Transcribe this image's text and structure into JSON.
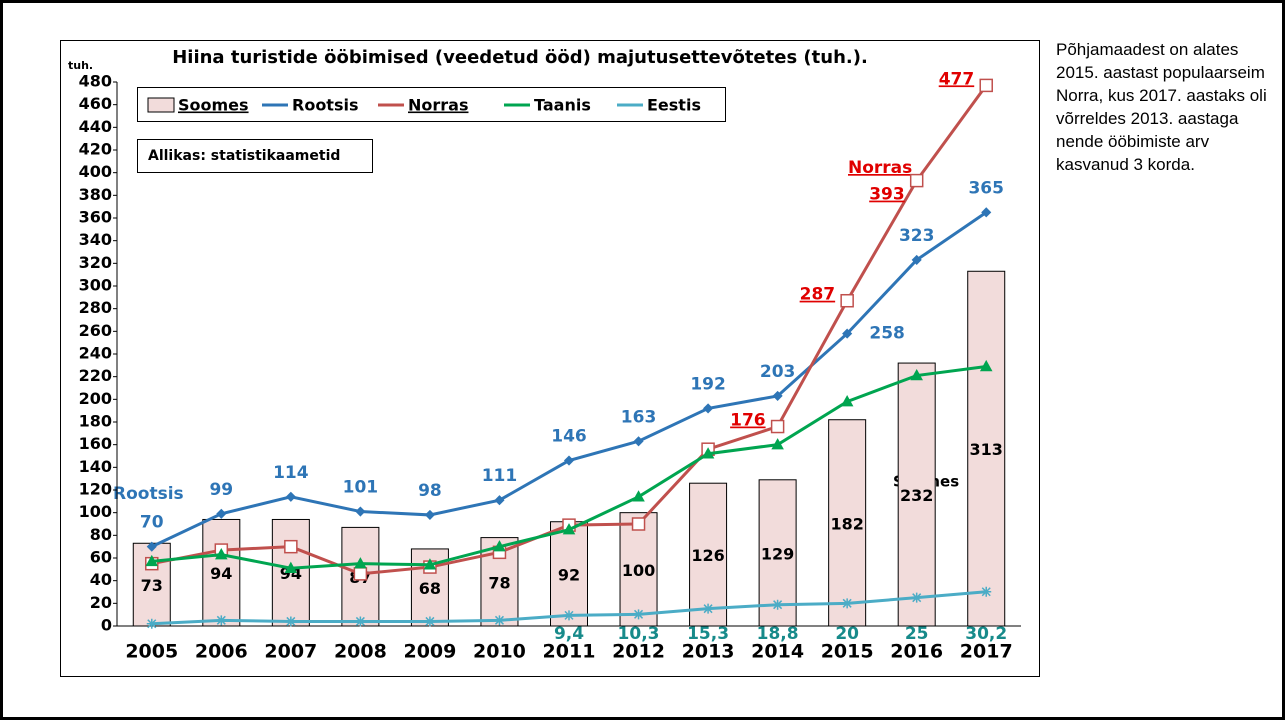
{
  "chart_data": {
    "type": "bar-line",
    "title": "Hiina turistide ööbimised (veedetud ööd) majutusettevõtetes (tuh.).",
    "y_unit": "tuh.",
    "source": "Allikas: statistikaametid",
    "annotations": [
      "Rootsis",
      "Norras",
      "Soomes"
    ],
    "categories": [
      "2005",
      "2006",
      "2007",
      "2008",
      "2009",
      "2010",
      "2011",
      "2012",
      "2013",
      "2014",
      "2015",
      "2016",
      "2017"
    ],
    "ylim": [
      0,
      480
    ],
    "yticks": [
      0,
      20,
      40,
      60,
      80,
      100,
      120,
      140,
      160,
      180,
      200,
      220,
      240,
      260,
      280,
      300,
      320,
      340,
      360,
      380,
      400,
      420,
      440,
      460,
      480
    ],
    "series": [
      {
        "name": "Soomes",
        "kind": "bar",
        "color": "#f2dcdb",
        "label_color": "#000000",
        "underline": true,
        "values": [
          73,
          94,
          94,
          87,
          68,
          78,
          92,
          100,
          126,
          129,
          182,
          232,
          313
        ],
        "value_labels": [
          "73",
          "94",
          "94",
          "87",
          "68",
          "78",
          "92",
          "100",
          "126",
          "129",
          "182",
          "232",
          "313"
        ]
      },
      {
        "name": "Rootsis",
        "kind": "line",
        "marker": "diamond",
        "color": "#2e75b6",
        "label_color": "#2e75b6",
        "underline": false,
        "values": [
          70,
          99,
          114,
          101,
          98,
          111,
          146,
          163,
          192,
          203,
          258,
          323,
          365
        ],
        "value_labels": [
          "70",
          "99",
          "114",
          "101",
          "98",
          "111",
          "146",
          "163",
          "192",
          "203",
          "258",
          "323",
          "365"
        ]
      },
      {
        "name": "Norras",
        "kind": "line",
        "marker": "square",
        "color": "#c0504d",
        "label_color": "#e00000",
        "underline": true,
        "values": [
          55,
          67,
          70,
          46,
          52,
          65,
          89,
          90,
          156,
          176,
          287,
          393,
          477
        ],
        "value_labels": [
          null,
          null,
          null,
          null,
          null,
          null,
          null,
          null,
          null,
          "176",
          "287",
          "393",
          "477"
        ]
      },
      {
        "name": "Taanis",
        "kind": "line",
        "marker": "triangle",
        "color": "#00a550",
        "label_color": "#00a550",
        "underline": false,
        "values": [
          57,
          63,
          51,
          55,
          54,
          70,
          85,
          114,
          152,
          160,
          198,
          221,
          229
        ],
        "value_labels": [
          null,
          null,
          null,
          null,
          null,
          null,
          null,
          null,
          null,
          null,
          null,
          null,
          null
        ]
      },
      {
        "name": "Eestis",
        "kind": "line",
        "marker": "star",
        "color": "#4bacc6",
        "label_color": "#178a8a",
        "underline": false,
        "values": [
          2,
          5,
          4,
          4,
          4,
          5,
          9.4,
          10.3,
          15.3,
          18.8,
          20,
          25,
          30.2
        ],
        "value_labels": [
          null,
          null,
          null,
          null,
          null,
          null,
          "9,4",
          "10,3",
          "15,3",
          "18,8",
          "20",
          "25",
          "30,2"
        ]
      }
    ]
  },
  "side_text": "Põhjamaadest on alates 2015. aastast populaarseim Norra, kus 2017. aastaks oli võrreldes 2013. aastaga nende ööbimiste arv kasvanud 3 korda."
}
